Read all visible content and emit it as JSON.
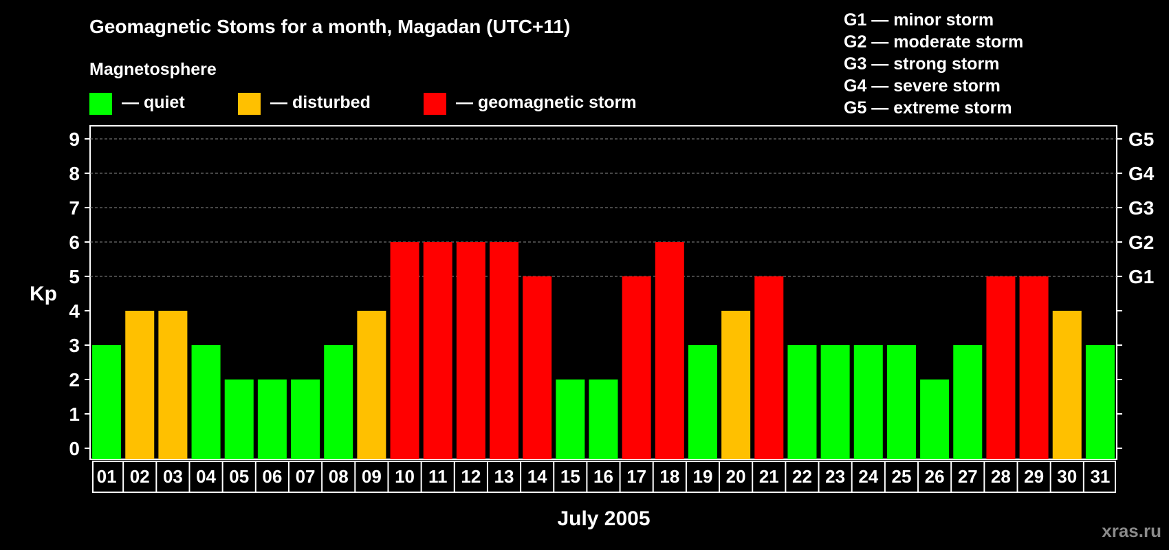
{
  "title": "Geomagnetic Stoms for a month, Magadan (UTC+11)",
  "watermark": "xras.ru",
  "legend": {
    "heading": "Magnetosphere",
    "items": [
      {
        "label": "— quiet",
        "color": "#00FF00"
      },
      {
        "label": "— disturbed",
        "color": "#FFC000"
      },
      {
        "label": "— geomagnetic storm",
        "color": "#FF0000"
      }
    ]
  },
  "storm_scale": [
    "G1 — minor storm",
    "G2 — moderate storm",
    "G3 — strong storm",
    "G4 — severe storm",
    "G5 — extreme storm"
  ],
  "chart_data": {
    "type": "bar",
    "xlabel": "July 2005",
    "ylabel": "Kp",
    "ylim": [
      0,
      9
    ],
    "yticks": [
      0,
      1,
      2,
      3,
      4,
      5,
      6,
      7,
      8,
      9
    ],
    "grid": "dashed horizontal at 5–9",
    "right_axis_labels": [
      {
        "y": 5,
        "label": "G1"
      },
      {
        "y": 6,
        "label": "G2"
      },
      {
        "y": 7,
        "label": "G3"
      },
      {
        "y": 8,
        "label": "G4"
      },
      {
        "y": 9,
        "label": "G5"
      }
    ],
    "categories": [
      "01",
      "02",
      "03",
      "04",
      "05",
      "06",
      "07",
      "08",
      "09",
      "10",
      "11",
      "12",
      "13",
      "14",
      "15",
      "16",
      "17",
      "18",
      "19",
      "20",
      "21",
      "22",
      "23",
      "24",
      "25",
      "26",
      "27",
      "28",
      "29",
      "30",
      "31"
    ],
    "values": [
      3,
      4,
      4,
      3,
      2,
      2,
      2,
      3,
      4,
      6,
      6,
      6,
      6,
      5,
      2,
      2,
      5,
      6,
      3,
      4,
      5,
      3,
      3,
      3,
      3,
      2,
      3,
      5,
      5,
      4,
      3
    ],
    "color_rule": {
      "quiet": "#00FF00",
      "disturbed": "#FFC000",
      "storm": "#FF0000"
    }
  }
}
